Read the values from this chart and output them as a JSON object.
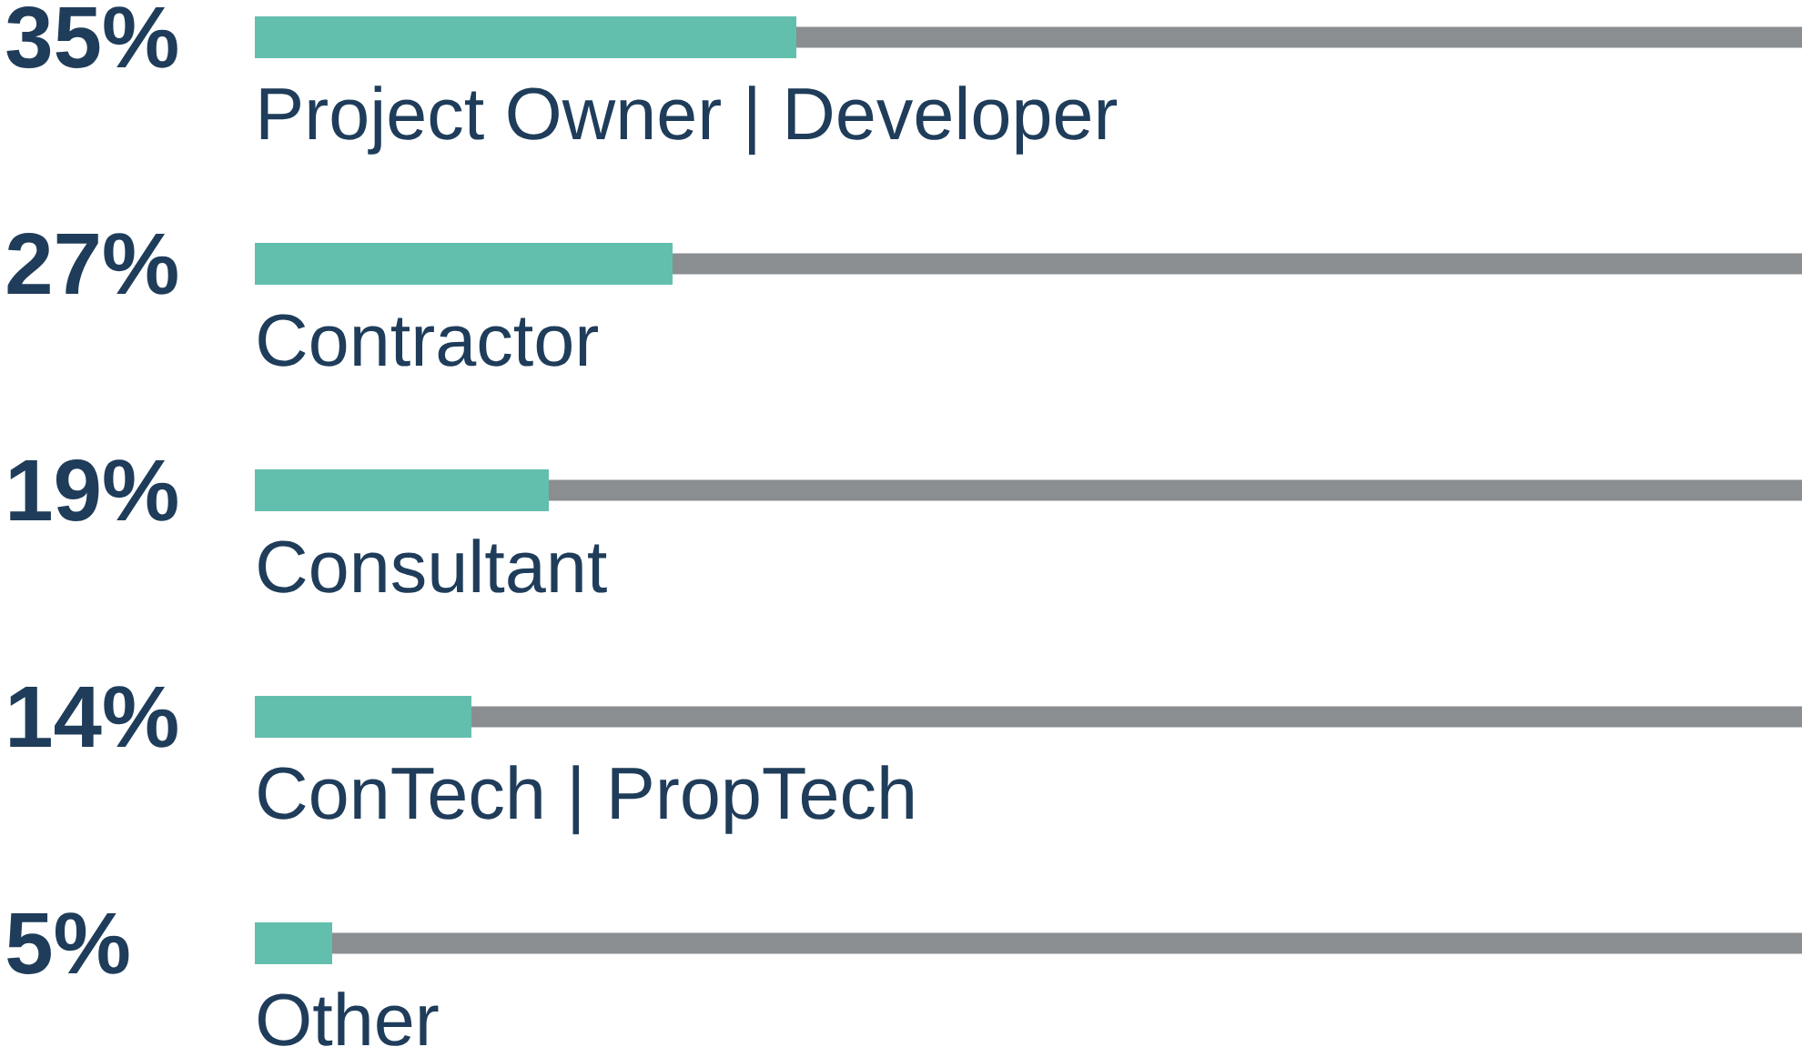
{
  "chart_data": {
    "type": "bar",
    "orientation": "horizontal",
    "stacked": true,
    "categories": [
      "Project Owner | Developer",
      "Contractor",
      "Consultant",
      "ConTech | PropTech",
      "Other"
    ],
    "series": [
      {
        "color": "#62bfad",
        "values": [
          35,
          27,
          19,
          14,
          5
        ],
        "value_labels": [
          "35%",
          "27%",
          "19%",
          "14%",
          "5%"
        ]
      },
      {
        "color": "#8a8e91",
        "values": [
          65,
          73,
          81,
          86,
          95
        ]
      }
    ],
    "xlim": [
      0,
      100
    ],
    "tick_labels": "y"
  }
}
